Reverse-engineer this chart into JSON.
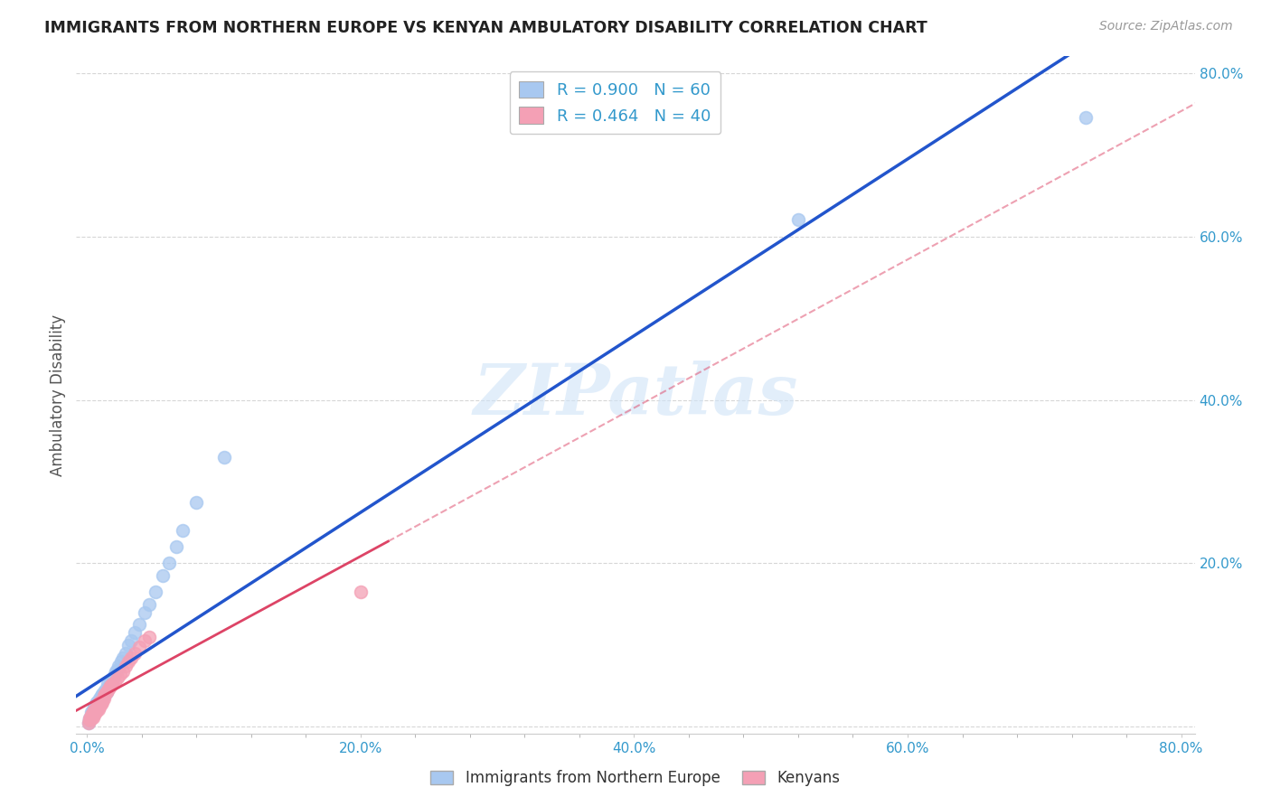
{
  "title": "IMMIGRANTS FROM NORTHERN EUROPE VS KENYAN AMBULATORY DISABILITY CORRELATION CHART",
  "source": "Source: ZipAtlas.com",
  "ylabel": "Ambulatory Disability",
  "blue_R": 0.9,
  "blue_N": 60,
  "pink_R": 0.464,
  "pink_N": 40,
  "blue_color": "#A8C8F0",
  "pink_color": "#F4A0B5",
  "blue_line_color": "#2255CC",
  "pink_line_color": "#DD4466",
  "watermark": "ZIPatlas",
  "legend_label_blue": "R = 0.900   N = 60",
  "legend_label_pink": "R = 0.464   N = 40",
  "legend_bottom_blue": "Immigrants from Northern Europe",
  "legend_bottom_pink": "Kenyans",
  "blue_x": [
    0.001,
    0.002,
    0.002,
    0.003,
    0.003,
    0.003,
    0.004,
    0.004,
    0.004,
    0.005,
    0.005,
    0.005,
    0.006,
    0.006,
    0.006,
    0.007,
    0.007,
    0.007,
    0.008,
    0.008,
    0.008,
    0.009,
    0.009,
    0.01,
    0.01,
    0.011,
    0.011,
    0.012,
    0.012,
    0.013,
    0.013,
    0.014,
    0.015,
    0.015,
    0.016,
    0.017,
    0.018,
    0.019,
    0.02,
    0.021,
    0.022,
    0.023,
    0.025,
    0.026,
    0.028,
    0.03,
    0.032,
    0.035,
    0.038,
    0.042,
    0.045,
    0.05,
    0.055,
    0.06,
    0.065,
    0.07,
    0.08,
    0.1,
    0.52,
    0.73
  ],
  "blue_y": [
    0.005,
    0.008,
    0.01,
    0.012,
    0.015,
    0.018,
    0.015,
    0.018,
    0.02,
    0.02,
    0.022,
    0.025,
    0.022,
    0.025,
    0.028,
    0.025,
    0.028,
    0.03,
    0.028,
    0.03,
    0.032,
    0.03,
    0.035,
    0.032,
    0.038,
    0.035,
    0.04,
    0.038,
    0.042,
    0.04,
    0.045,
    0.042,
    0.048,
    0.052,
    0.05,
    0.055,
    0.055,
    0.06,
    0.065,
    0.068,
    0.07,
    0.075,
    0.08,
    0.085,
    0.09,
    0.1,
    0.105,
    0.115,
    0.125,
    0.14,
    0.15,
    0.165,
    0.185,
    0.2,
    0.22,
    0.24,
    0.275,
    0.33,
    0.62,
    0.745
  ],
  "pink_x": [
    0.001,
    0.002,
    0.002,
    0.003,
    0.003,
    0.004,
    0.004,
    0.005,
    0.005,
    0.006,
    0.006,
    0.007,
    0.007,
    0.008,
    0.008,
    0.009,
    0.009,
    0.01,
    0.01,
    0.011,
    0.012,
    0.012,
    0.013,
    0.014,
    0.015,
    0.016,
    0.017,
    0.018,
    0.02,
    0.022,
    0.024,
    0.026,
    0.028,
    0.03,
    0.032,
    0.035,
    0.038,
    0.042,
    0.045,
    0.2
  ],
  "pink_y": [
    0.005,
    0.008,
    0.01,
    0.01,
    0.015,
    0.012,
    0.018,
    0.015,
    0.02,
    0.018,
    0.022,
    0.02,
    0.025,
    0.022,
    0.028,
    0.025,
    0.03,
    0.028,
    0.032,
    0.03,
    0.035,
    0.038,
    0.04,
    0.042,
    0.045,
    0.048,
    0.05,
    0.052,
    0.055,
    0.06,
    0.065,
    0.068,
    0.075,
    0.08,
    0.085,
    0.09,
    0.098,
    0.105,
    0.11,
    0.165
  ],
  "xlim": [
    0.0,
    0.8
  ],
  "ylim": [
    0.0,
    0.8
  ],
  "x_ticks": [
    0.0,
    0.2,
    0.4,
    0.6,
    0.8
  ],
  "y_ticks": [
    0.0,
    0.2,
    0.4,
    0.6,
    0.8
  ],
  "x_tick_labels": [
    "0.0%",
    "20.0%",
    "40.0%",
    "60.0%",
    "80.0%"
  ],
  "y_tick_labels": [
    "",
    "20.0%",
    "40.0%",
    "60.0%",
    "80.0%"
  ]
}
